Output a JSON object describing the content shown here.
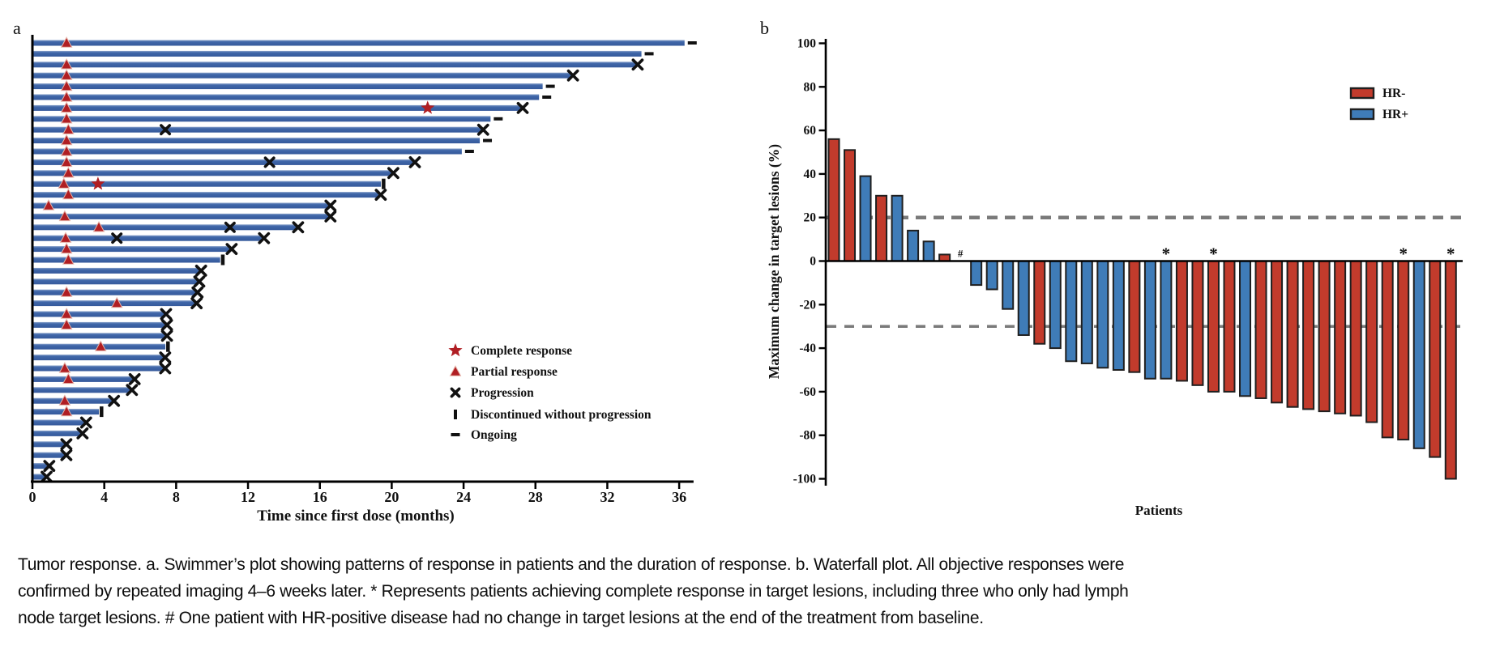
{
  "figure": {
    "panel_a_label": "a",
    "panel_b_label": "b"
  },
  "caption": {
    "line1": "Tumor response. a. Swimmer’s plot showing patterns of response in patients and the duration of response. b. Waterfall plot. All objective responses were",
    "line2": "confirmed by repeated imaging 4–6 weeks later. * Represents patients achieving complete response in target lesions, including three who only had lymph",
    "line3": "node target lesions. # One patient with HR-positive disease had no change in target lesions at the end of the treatment from baseline."
  },
  "chart_data": [
    {
      "type": "swimmer",
      "panel": "a",
      "xlabel": "Time since first dose (months)",
      "x_ticks": [
        0,
        4,
        8,
        12,
        16,
        20,
        24,
        28,
        32,
        36
      ],
      "xlim": [
        0,
        36.8
      ],
      "bar_color": "#3B63A8",
      "marker_color": "#B01E23",
      "legend": [
        {
          "marker": "star",
          "label": "Complete response"
        },
        {
          "marker": "triangle",
          "label": "Partial response"
        },
        {
          "marker": "x",
          "label": "Progression"
        },
        {
          "marker": "vbar",
          "label": "Discontinued without progression"
        },
        {
          "marker": "dash",
          "label": "Ongoing"
        }
      ],
      "patients": [
        {
          "duration": 36.3,
          "end": "ongoing",
          "partial": 1.9
        },
        {
          "duration": 33.9,
          "end": "ongoing"
        },
        {
          "duration": 33.6,
          "end": "progression",
          "partial": 1.9
        },
        {
          "duration": 30.0,
          "end": "progression",
          "partial": 1.9
        },
        {
          "duration": 28.4,
          "end": "ongoing",
          "partial": 1.9
        },
        {
          "duration": 28.2,
          "end": "ongoing",
          "partial": 1.9
        },
        {
          "duration": 27.2,
          "end": "progression",
          "partial": 1.9,
          "complete": 22.0
        },
        {
          "duration": 25.5,
          "end": "ongoing",
          "partial": 1.9
        },
        {
          "duration": 25.0,
          "end": "progression",
          "partial": 2.0,
          "prog_mid": 7.4
        },
        {
          "duration": 24.9,
          "end": "ongoing",
          "partial": 1.9
        },
        {
          "duration": 23.9,
          "end": "ongoing",
          "partial": 1.9
        },
        {
          "duration": 21.2,
          "end": "progression",
          "partial": 1.9,
          "prog_mid": 13.2
        },
        {
          "duration": 20.0,
          "end": "progression",
          "partial": 2.0
        },
        {
          "duration": 19.4,
          "end": "discontinued",
          "partial": 1.75,
          "complete": 3.65
        },
        {
          "duration": 19.3,
          "end": "progression",
          "partial": 2.0
        },
        {
          "duration": 16.5,
          "end": "progression",
          "partial": 0.9
        },
        {
          "duration": 16.5,
          "end": "progression",
          "partial": 1.8
        },
        {
          "duration": 14.7,
          "end": "progression",
          "partial": 3.7,
          "prog_mid": 11.0
        },
        {
          "duration": 12.8,
          "end": "progression",
          "partial": 1.85,
          "prog_mid": 4.7
        },
        {
          "duration": 11.0,
          "end": "progression",
          "partial": 1.9
        },
        {
          "duration": 10.45,
          "end": "discontinued",
          "partial": 2.0
        },
        {
          "duration": 9.3,
          "end": "progression"
        },
        {
          "duration": 9.2,
          "end": "progression"
        },
        {
          "duration": 9.1,
          "end": "progression",
          "partial": 1.9
        },
        {
          "duration": 9.05,
          "end": "progression",
          "partial": 4.7
        },
        {
          "duration": 7.35,
          "end": "progression",
          "partial": 1.9
        },
        {
          "duration": 7.4,
          "end": "progression",
          "partial": 1.9
        },
        {
          "duration": 7.4,
          "end": "progression"
        },
        {
          "duration": 7.4,
          "end": "discontinued",
          "partial": 3.8
        },
        {
          "duration": 7.3,
          "end": "progression"
        },
        {
          "duration": 7.3,
          "end": "progression",
          "partial": 1.8
        },
        {
          "duration": 5.6,
          "end": "progression",
          "partial": 2.0
        },
        {
          "duration": 5.45,
          "end": "progression"
        },
        {
          "duration": 4.45,
          "end": "progression",
          "partial": 1.8
        },
        {
          "duration": 3.7,
          "end": "discontinued",
          "partial": 1.9
        },
        {
          "duration": 2.9,
          "end": "progression"
        },
        {
          "duration": 2.7,
          "end": "progression"
        },
        {
          "duration": 1.8,
          "end": "progression"
        },
        {
          "duration": 1.8,
          "end": "progression"
        },
        {
          "duration": 0.85,
          "end": "progression"
        },
        {
          "duration": 0.7,
          "end": "progression"
        }
      ]
    },
    {
      "type": "waterfall",
      "panel": "b",
      "ylabel": "Maximum change in target lesions (%)",
      "xlabel": "Patients",
      "ylim": [
        -100,
        100
      ],
      "y_ticks": [
        100,
        80,
        60,
        40,
        20,
        0,
        -20,
        -40,
        -60,
        -80,
        -100
      ],
      "reference_lines": [
        20,
        -30
      ],
      "grid": false,
      "legend_position": "upper right",
      "legend": [
        {
          "label": "HR-",
          "color": "#C23B2C"
        },
        {
          "label": "HR+",
          "color": "#3F7CB8"
        }
      ],
      "bars": [
        {
          "value": 56,
          "group": "HR-"
        },
        {
          "value": 51,
          "group": "HR-"
        },
        {
          "value": 39,
          "group": "HR+"
        },
        {
          "value": 30,
          "group": "HR-"
        },
        {
          "value": 30,
          "group": "HR+"
        },
        {
          "value": 14,
          "group": "HR+"
        },
        {
          "value": 9,
          "group": "HR+"
        },
        {
          "value": 3,
          "group": "HR-"
        },
        {
          "value": 0,
          "group": "HR+",
          "mark": "#"
        },
        {
          "value": -11,
          "group": "HR+"
        },
        {
          "value": -13,
          "group": "HR+"
        },
        {
          "value": -22,
          "group": "HR+"
        },
        {
          "value": -34,
          "group": "HR+"
        },
        {
          "value": -38,
          "group": "HR-"
        },
        {
          "value": -40,
          "group": "HR+"
        },
        {
          "value": -46,
          "group": "HR+"
        },
        {
          "value": -47,
          "group": "HR+"
        },
        {
          "value": -49,
          "group": "HR+"
        },
        {
          "value": -50,
          "group": "HR+"
        },
        {
          "value": -51,
          "group": "HR-"
        },
        {
          "value": -54,
          "group": "HR+"
        },
        {
          "value": -54,
          "group": "HR+",
          "mark": "*"
        },
        {
          "value": -55,
          "group": "HR-"
        },
        {
          "value": -57,
          "group": "HR-"
        },
        {
          "value": -60,
          "group": "HR-",
          "mark": "*"
        },
        {
          "value": -60,
          "group": "HR-"
        },
        {
          "value": -62,
          "group": "HR+"
        },
        {
          "value": -63,
          "group": "HR-"
        },
        {
          "value": -65,
          "group": "HR-"
        },
        {
          "value": -67,
          "group": "HR-"
        },
        {
          "value": -68,
          "group": "HR-"
        },
        {
          "value": -69,
          "group": "HR-"
        },
        {
          "value": -70,
          "group": "HR-"
        },
        {
          "value": -71,
          "group": "HR-"
        },
        {
          "value": -74,
          "group": "HR-"
        },
        {
          "value": -81,
          "group": "HR-"
        },
        {
          "value": -82,
          "group": "HR-",
          "mark": "*"
        },
        {
          "value": -86,
          "group": "HR+"
        },
        {
          "value": -90,
          "group": "HR-"
        },
        {
          "value": -100,
          "group": "HR-",
          "mark": "*"
        }
      ]
    }
  ]
}
